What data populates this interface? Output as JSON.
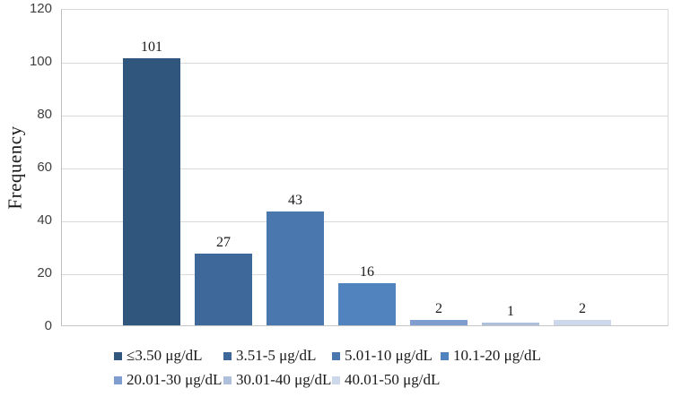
{
  "chart_data": {
    "type": "bar",
    "title": "",
    "xlabel": "",
    "ylabel": "Frequency",
    "ylim": [
      0,
      120
    ],
    "yticks": [
      0,
      20,
      40,
      60,
      80,
      100,
      120
    ],
    "grid": true,
    "legend_position": "bottom",
    "categories": [
      "≤3.50 μg/dL",
      "3.51-5 μg/dL",
      "5.01-10 μg/dL",
      "10.1-20 μg/dL",
      "20.01-30 μg/dL",
      "30.01-40 μg/dL",
      "40.01-50 μg/dL"
    ],
    "values": [
      101,
      27,
      43,
      16,
      2,
      1,
      2
    ],
    "bar_colors": [
      "#31567E",
      "#3D6899",
      "#4A78AE",
      "#5183BF",
      "#7F9DCF",
      "#AEC0DC",
      "#CDD8EA"
    ],
    "colors": {
      "gridline": "#d9d9d9",
      "axis_line": "#bfbfbf",
      "text": "#1a1a1a",
      "tick_text": "#404040"
    }
  }
}
